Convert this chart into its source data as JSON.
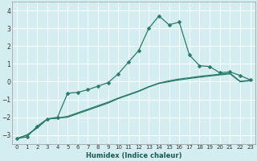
{
  "xlabel": "Humidex (Indice chaleur)",
  "x": [
    0,
    1,
    2,
    3,
    4,
    5,
    6,
    7,
    8,
    9,
    10,
    11,
    12,
    13,
    14,
    15,
    16,
    17,
    18,
    19,
    20,
    21,
    22,
    23
  ],
  "line1": [
    -3.2,
    -3.1,
    -2.5,
    -2.1,
    -2.0,
    -0.65,
    -0.6,
    -0.45,
    -0.25,
    -0.05,
    0.45,
    1.1,
    1.75,
    3.0,
    3.7,
    3.2,
    3.35,
    1.5,
    0.9,
    0.85,
    0.5,
    0.55,
    0.35,
    0.1
  ],
  "line2": [
    -3.2,
    -3.0,
    -2.6,
    -2.1,
    -2.05,
    -2.0,
    -1.8,
    -1.6,
    -1.4,
    -1.2,
    -0.95,
    -0.75,
    -0.55,
    -0.3,
    -0.1,
    0.0,
    0.1,
    0.18,
    0.25,
    0.32,
    0.38,
    0.44,
    0.0,
    0.05
  ],
  "line3": [
    -3.2,
    -3.0,
    -2.6,
    -2.1,
    -2.05,
    -1.95,
    -1.75,
    -1.55,
    -1.35,
    -1.15,
    -0.92,
    -0.72,
    -0.52,
    -0.28,
    -0.08,
    0.05,
    0.15,
    0.22,
    0.3,
    0.36,
    0.42,
    0.48,
    0.02,
    0.08
  ],
  "line_color": "#2a7a6a",
  "bg_color": "#d4edf0",
  "grid_color": "#ffffff",
  "plot_bg": "#d4edf0",
  "ylim": [
    -3.5,
    4.5
  ],
  "xlim": [
    -0.5,
    23.5
  ],
  "yticks": [
    -3,
    -2,
    -1,
    0,
    1,
    2,
    3,
    4
  ],
  "xticks": [
    0,
    1,
    2,
    3,
    4,
    5,
    6,
    7,
    8,
    9,
    10,
    11,
    12,
    13,
    14,
    15,
    16,
    17,
    18,
    19,
    20,
    21,
    22,
    23
  ],
  "xlabel_color": "#1a5a50",
  "tick_color": "#333333"
}
